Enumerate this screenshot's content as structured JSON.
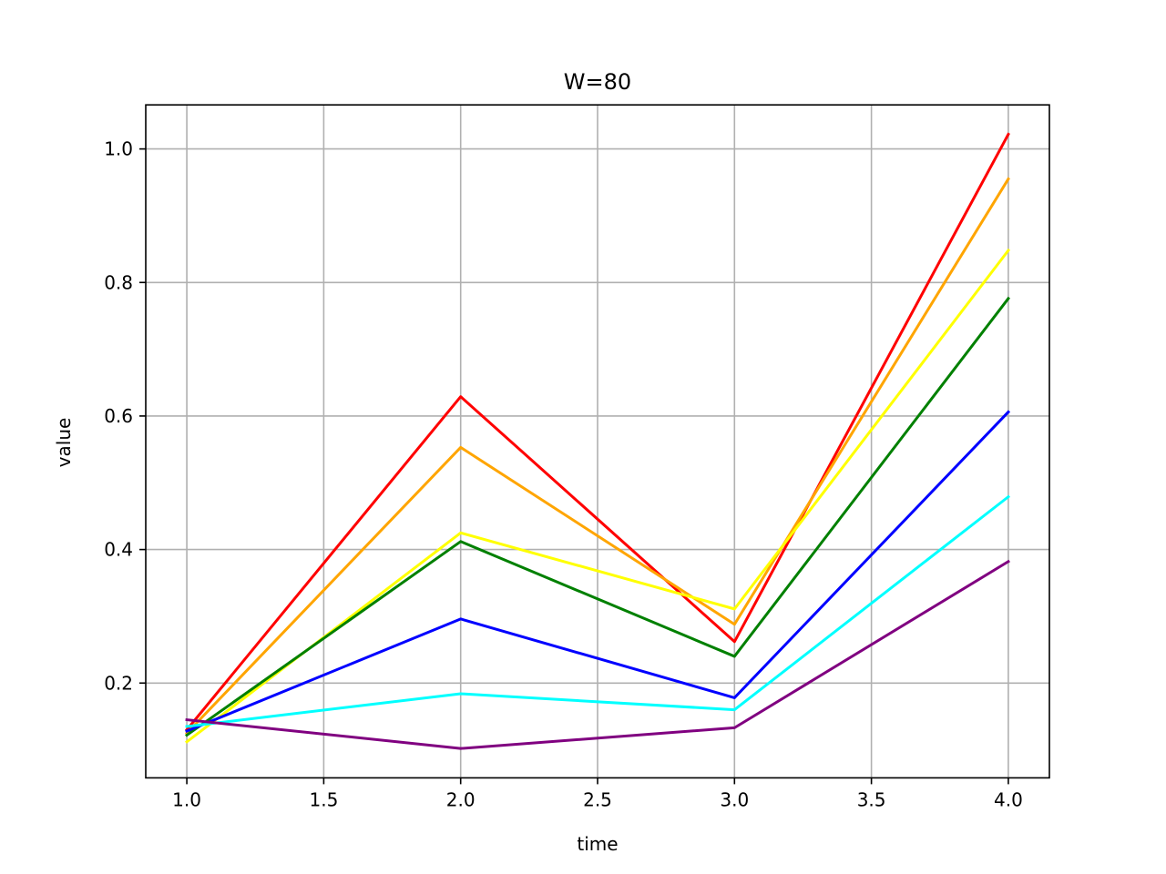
{
  "chart_data": {
    "type": "line",
    "title": "W=80",
    "xlabel": "time",
    "ylabel": "value",
    "x": [
      1,
      2,
      3,
      4
    ],
    "xlim": [
      0.85,
      4.15
    ],
    "ylim": [
      0.058,
      1.066
    ],
    "xticks": [
      1.0,
      1.5,
      2.0,
      2.5,
      3.0,
      3.5,
      4.0
    ],
    "xtick_labels": [
      "1.0",
      "1.5",
      "2.0",
      "2.5",
      "3.0",
      "3.5",
      "4.0"
    ],
    "yticks": [
      0.2,
      0.4,
      0.6,
      0.8,
      1.0
    ],
    "ytick_labels": [
      "0.2",
      "0.4",
      "0.6",
      "0.8",
      "1.0"
    ],
    "grid": true,
    "series": [
      {
        "color": "#ff0000",
        "values": [
          0.13,
          0.629,
          0.262,
          1.022
        ]
      },
      {
        "color": "#ffa500",
        "values": [
          0.125,
          0.553,
          0.288,
          0.955
        ]
      },
      {
        "color": "#ffff00",
        "values": [
          0.112,
          0.425,
          0.311,
          0.848
        ]
      },
      {
        "color": "#008000",
        "values": [
          0.122,
          0.412,
          0.24,
          0.776
        ]
      },
      {
        "color": "#0000ff",
        "values": [
          0.128,
          0.296,
          0.178,
          0.606
        ]
      },
      {
        "color": "#00ffff",
        "values": [
          0.135,
          0.184,
          0.16,
          0.479
        ]
      },
      {
        "color": "#800080",
        "values": [
          0.145,
          0.102,
          0.133,
          0.382
        ]
      }
    ]
  }
}
